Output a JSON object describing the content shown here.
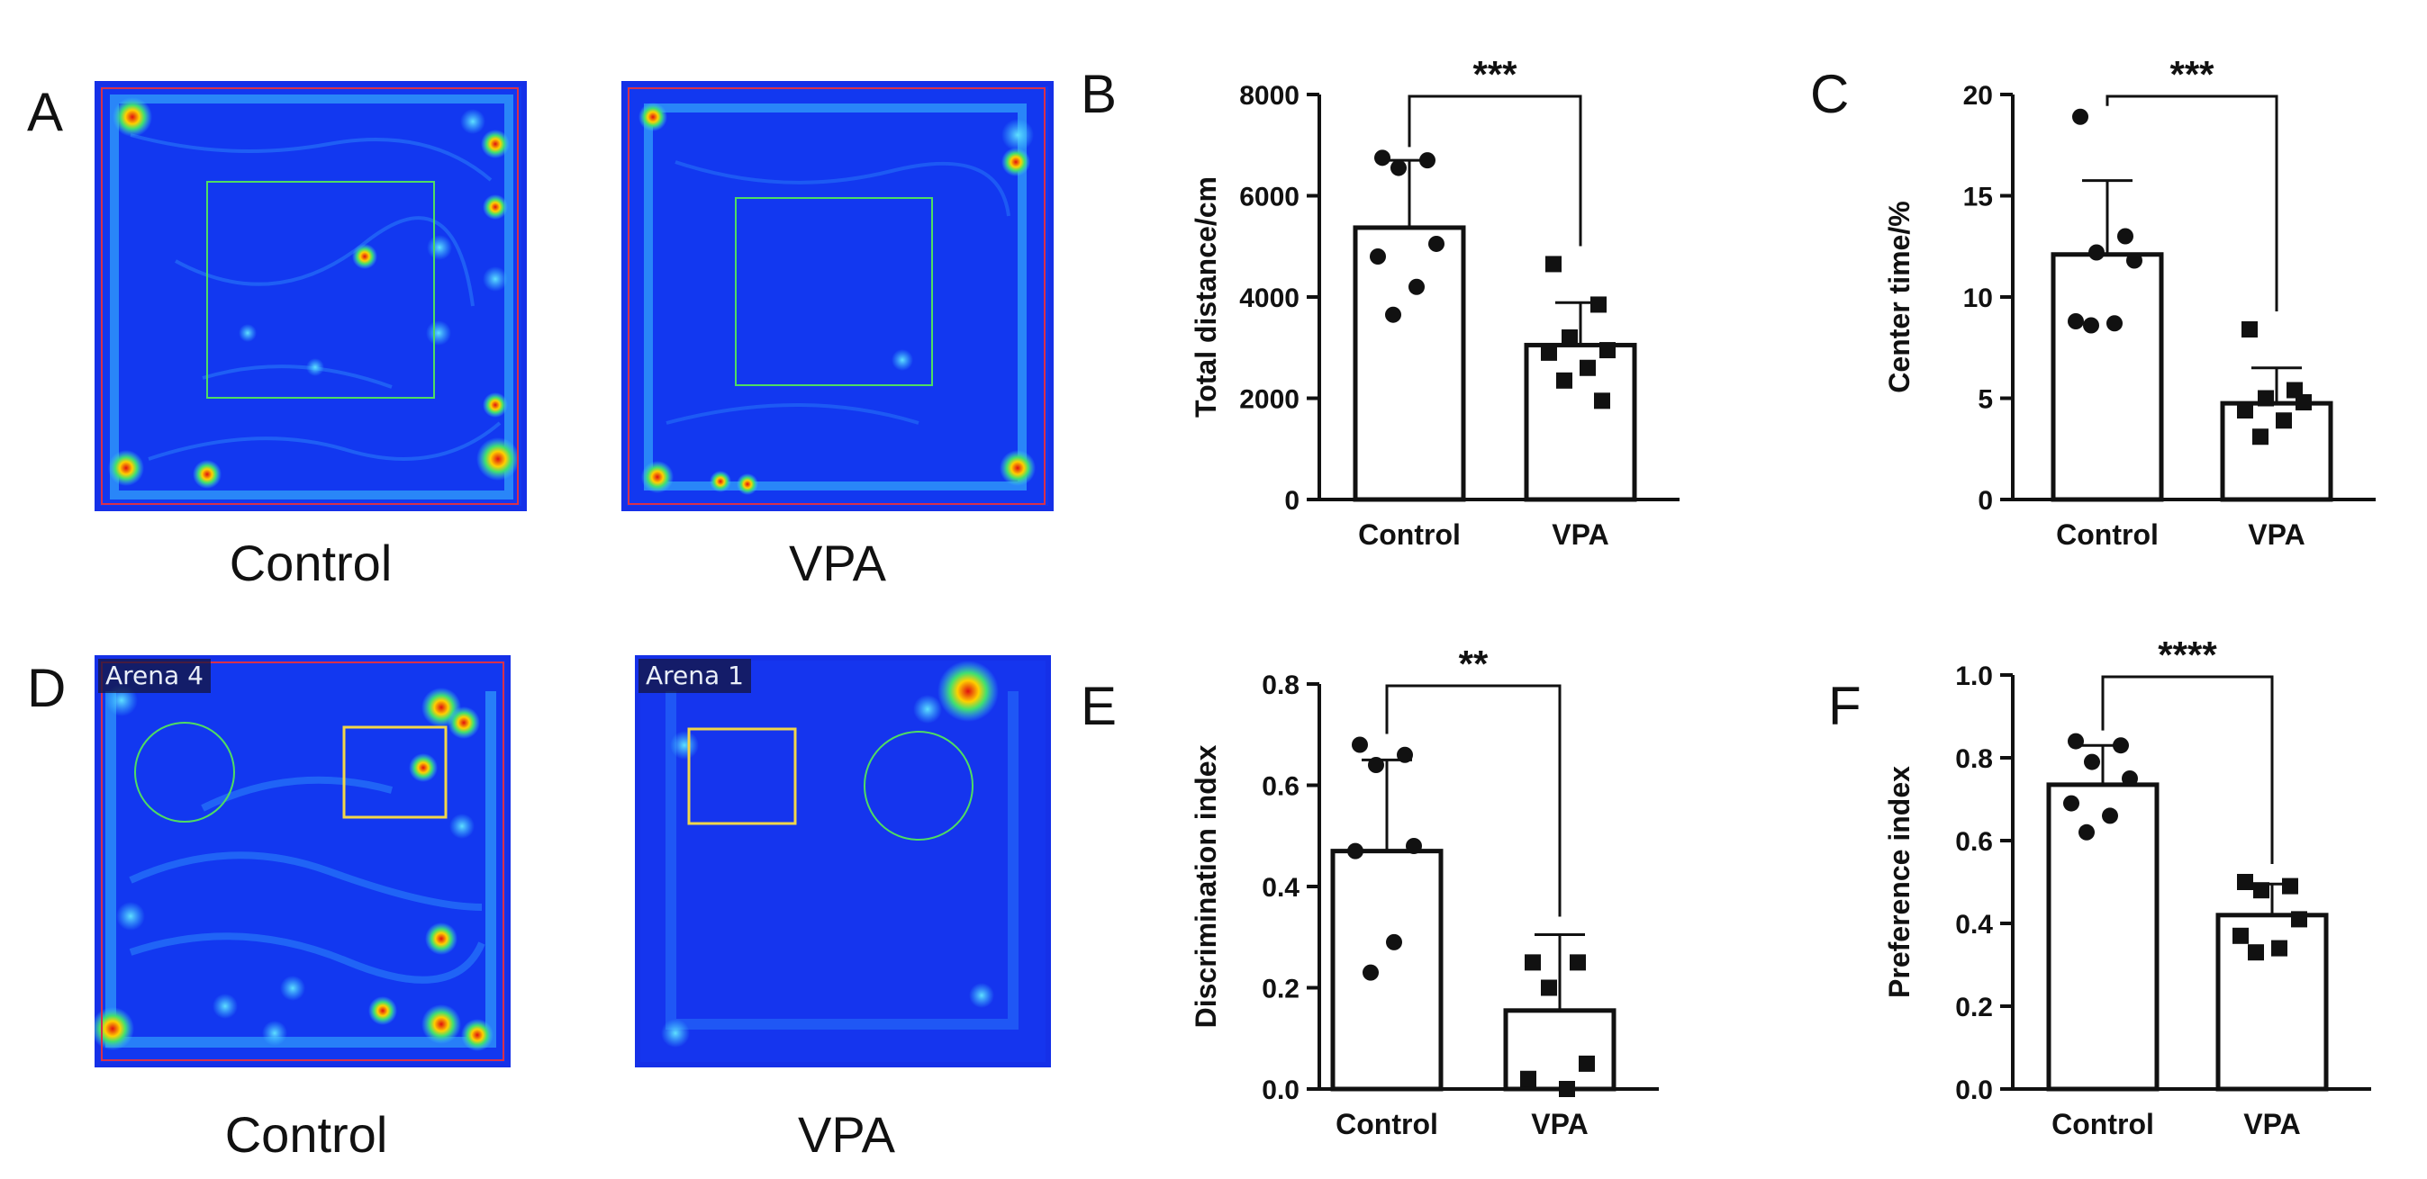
{
  "panels": {
    "A": "A",
    "B": "B",
    "C": "C",
    "D": "D",
    "E": "E",
    "F": "F"
  },
  "heatmaps": {
    "A_control_caption": "Control",
    "A_vpa_caption": "VPA",
    "D_control_caption": "Control",
    "D_vpa_caption": "VPA",
    "D_control_arena": "Arena 4",
    "D_vpa_arena": "Arena 1"
  },
  "colors": {
    "arena_blue": "#1530e8",
    "bright_track": "#3cc6ff",
    "hot_red": "#e01010",
    "zone_green": "#4fdc62",
    "zone_yellow": "#f1d64a",
    "border_red": "#d9304a"
  },
  "chart_data": [
    {
      "id": "B",
      "type": "bar",
      "categories": [
        "Control",
        "VPA"
      ],
      "values": [
        5370,
        3050
      ],
      "errors": [
        1330,
        840
      ],
      "points": [
        [
          6750,
          6700,
          6550,
          5050,
          4800,
          4200,
          3650
        ],
        [
          4650,
          3850,
          3200,
          2950,
          2900,
          2600,
          2350,
          1950
        ]
      ],
      "markers": [
        "circle",
        "square"
      ],
      "ylabel": "Total distance/cm",
      "ylim": [
        0,
        8000
      ],
      "yticks": [
        0,
        2000,
        4000,
        6000,
        8000
      ],
      "yticklabels": [
        "0",
        "2000",
        "4000",
        "6000",
        "8000"
      ],
      "significance": "***"
    },
    {
      "id": "C",
      "type": "bar",
      "categories": [
        "Control",
        "VPA"
      ],
      "values": [
        12.1,
        4.75
      ],
      "errors": [
        3.65,
        1.75
      ],
      "points": [
        [
          18.9,
          13.0,
          12.2,
          11.8,
          8.8,
          8.7,
          8.6
        ],
        [
          8.4,
          5.4,
          5.0,
          4.8,
          4.4,
          3.9,
          3.1
        ]
      ],
      "markers": [
        "circle",
        "square"
      ],
      "ylabel": "Center time/%",
      "ylim": [
        0,
        20
      ],
      "yticks": [
        0,
        5,
        10,
        15,
        20
      ],
      "yticklabels": [
        "0",
        "5",
        "10",
        "15",
        "20"
      ],
      "significance": "***"
    },
    {
      "id": "E",
      "type": "bar",
      "categories": [
        "Control",
        "VPA"
      ],
      "values": [
        0.47,
        0.155
      ],
      "errors": [
        0.18,
        0.15
      ],
      "points": [
        [
          0.68,
          0.66,
          0.64,
          0.48,
          0.47,
          0.29,
          0.23
        ],
        [
          0.25,
          0.25,
          0.2,
          0.05,
          0.02,
          0.0
        ]
      ],
      "markers": [
        "circle",
        "square"
      ],
      "ylabel": "Discrimination index",
      "ylim": [
        0,
        0.8
      ],
      "yticks": [
        0,
        0.2,
        0.4,
        0.6,
        0.8
      ],
      "yticklabels": [
        "0.0",
        "0.2",
        "0.4",
        "0.6",
        "0.8"
      ],
      "significance": "**"
    },
    {
      "id": "F",
      "type": "bar",
      "categories": [
        "Control",
        "VPA"
      ],
      "values": [
        0.735,
        0.42
      ],
      "errors": [
        0.095,
        0.075
      ],
      "points": [
        [
          0.84,
          0.83,
          0.79,
          0.75,
          0.69,
          0.66,
          0.62
        ],
        [
          0.5,
          0.49,
          0.48,
          0.41,
          0.37,
          0.34,
          0.33
        ]
      ],
      "markers": [
        "circle",
        "square"
      ],
      "ylabel": "Preference index",
      "ylim": [
        0,
        1.0
      ],
      "yticks": [
        0,
        0.2,
        0.4,
        0.6,
        0.8,
        1.0
      ],
      "yticklabels": [
        "0.0",
        "0.2",
        "0.4",
        "0.6",
        "0.8",
        "1.0"
      ],
      "significance": "****"
    }
  ]
}
